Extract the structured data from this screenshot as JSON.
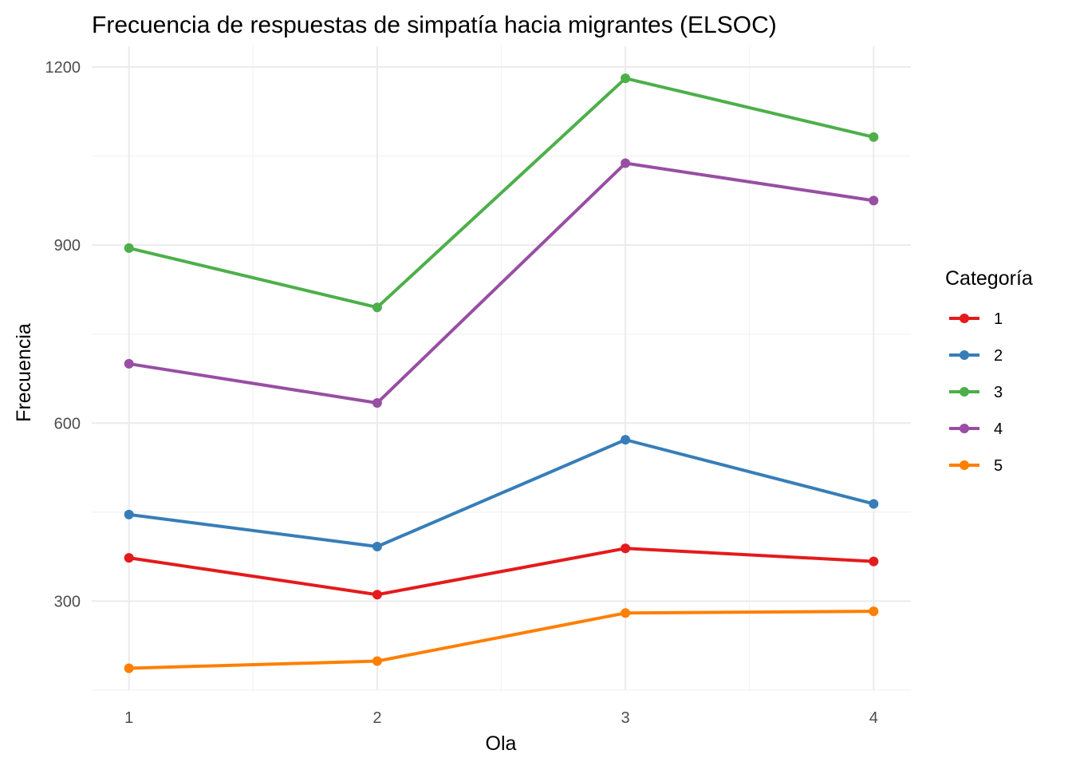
{
  "chart_data": {
    "type": "line",
    "title": "Frecuencia de respuestas de simpatía hacia migrantes (ELSOC)",
    "xlabel": "Ola",
    "ylabel": "Frecuencia",
    "x": [
      1,
      2,
      3,
      4
    ],
    "x_tick_labels": [
      "1",
      "2",
      "3",
      "4"
    ],
    "y_ticks": [
      300,
      600,
      900,
      1200
    ],
    "y_tick_labels": [
      "300",
      "600",
      "900",
      "1200"
    ],
    "xlim": [
      0.85,
      4.15
    ],
    "ylim": [
      150,
      1235
    ],
    "grid": true,
    "legend": {
      "title": "Categoría",
      "position": "right"
    },
    "series": [
      {
        "name": "1",
        "color": "#E41A1C",
        "values": [
          373,
          311,
          389,
          367
        ]
      },
      {
        "name": "2",
        "color": "#377EB8",
        "values": [
          446,
          392,
          572,
          464
        ]
      },
      {
        "name": "3",
        "color": "#4DAF4A",
        "values": [
          895,
          795,
          1181,
          1082
        ]
      },
      {
        "name": "4",
        "color": "#984EA3",
        "values": [
          700,
          634,
          1038,
          975
        ]
      },
      {
        "name": "5",
        "color": "#FF7F00",
        "values": [
          187,
          199,
          280,
          283
        ]
      }
    ]
  }
}
